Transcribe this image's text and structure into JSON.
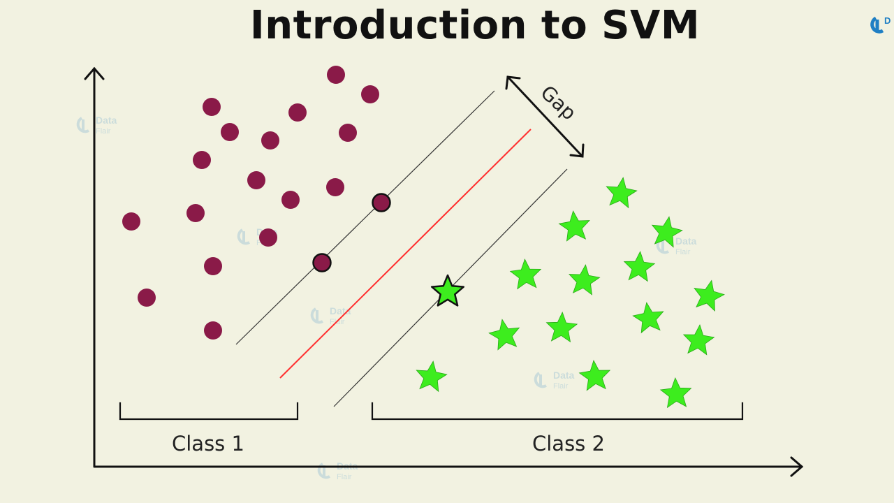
{
  "title": "Introduction to SVM",
  "labels": {
    "gap": "Gap",
    "class1": "Class 1",
    "class2": "Class 2"
  },
  "watermark": {
    "line1": "Data",
    "line2": "Flair"
  },
  "colors": {
    "background": "#f2f2e1",
    "class1_point": "#8a1a48",
    "class2_point": "#3ded1e",
    "hyperplane": "#ff2d2d",
    "margin_line": "#333333",
    "axis": "#111111"
  },
  "icons": {
    "class1_marker": "circle",
    "class2_marker": "star",
    "logo": "dataflair-logo-icon"
  }
}
